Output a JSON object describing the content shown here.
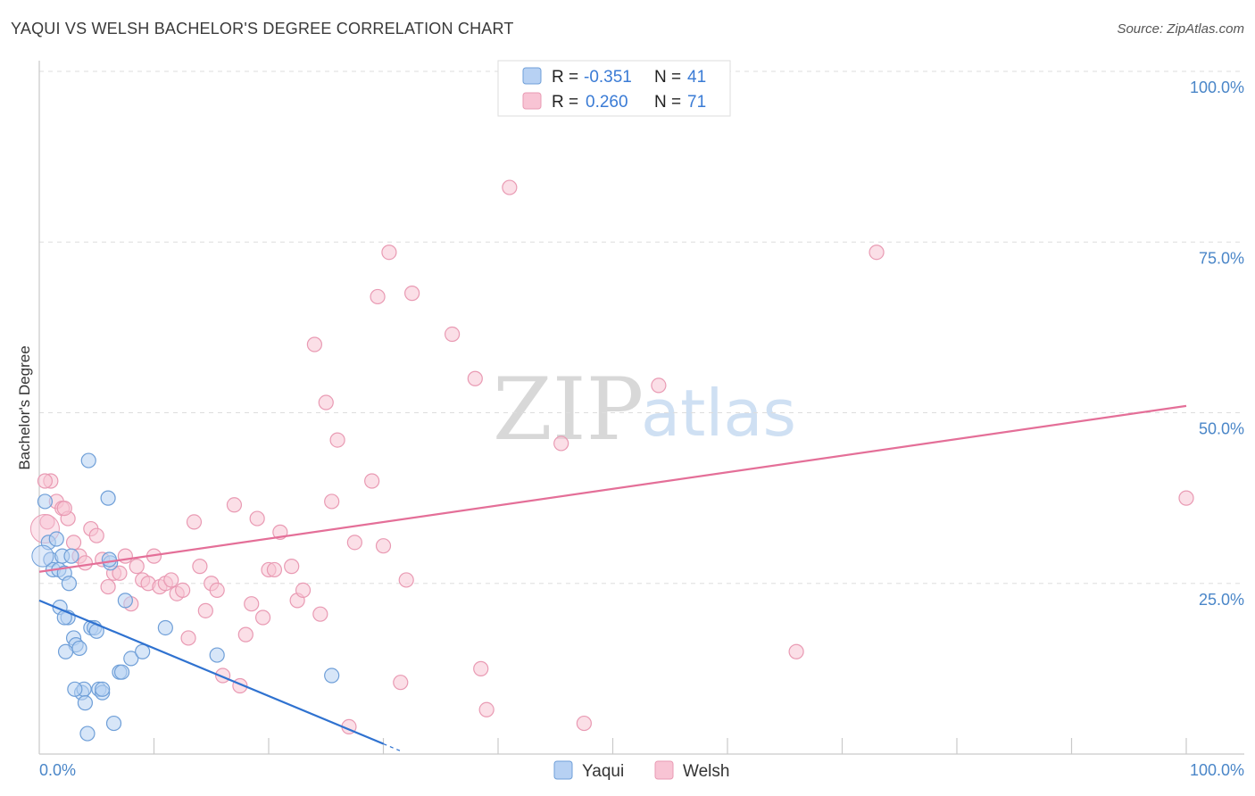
{
  "header": {
    "title": "YAQUI VS WELSH BACHELOR'S DEGREE CORRELATION CHART",
    "source": "Source: ZipAtlas.com"
  },
  "watermark": {
    "zip": "ZIP",
    "atlas": "atlas"
  },
  "legend_top": {
    "yaqui": {
      "r_label": "R =",
      "r_value": "-0.351",
      "n_label": "N =",
      "n_value": "41"
    },
    "welsh": {
      "r_label": "R =",
      "r_value": "0.260",
      "n_label": "N =",
      "n_value": "71"
    }
  },
  "legend_bottom": {
    "yaqui": "Yaqui",
    "welsh": "Welsh"
  },
  "colors": {
    "yaqui_fill": "#b7d1f3",
    "yaqui_stroke": "#6f9fd8",
    "yaqui_line": "#2f72d0",
    "welsh_fill": "#f8c4d4",
    "welsh_stroke": "#e99ab3",
    "welsh_line": "#e46f98",
    "grid": "#dddddd",
    "tick_text": "#4a86c8"
  },
  "chart_data": {
    "type": "scatter",
    "title": "YAQUI VS WELSH BACHELOR'S DEGREE CORRELATION CHART",
    "xlabel": "",
    "ylabel": "Bachelor's Degree",
    "xlim": [
      0,
      100
    ],
    "ylim": [
      0,
      100
    ],
    "x_tick_labels": [
      "0.0%",
      "100.0%"
    ],
    "y_tick_labels": [
      "25.0%",
      "50.0%",
      "75.0%",
      "100.0%"
    ],
    "y_ticks": [
      25,
      50,
      75,
      100
    ],
    "grid": true,
    "series": [
      {
        "name": "Yaqui",
        "r": -0.351,
        "n": 41,
        "trend": {
          "x0": 0,
          "y0": 22.5,
          "x1": 30,
          "y1": 1.5,
          "dashed_to_x": 31.5
        },
        "points": [
          [
            0.5,
            37.0
          ],
          [
            0.8,
            31.0
          ],
          [
            1.0,
            28.5
          ],
          [
            1.2,
            27.0
          ],
          [
            1.5,
            31.5
          ],
          [
            1.7,
            27.0
          ],
          [
            2.0,
            29.0
          ],
          [
            2.2,
            26.5
          ],
          [
            1.8,
            21.5
          ],
          [
            2.5,
            20.0
          ],
          [
            2.6,
            25.0
          ],
          [
            2.8,
            29.0
          ],
          [
            3.0,
            17.0
          ],
          [
            3.2,
            16.0
          ],
          [
            2.3,
            15.0
          ],
          [
            3.5,
            15.5
          ],
          [
            3.7,
            9.0
          ],
          [
            3.9,
            9.5
          ],
          [
            4.0,
            7.5
          ],
          [
            4.2,
            3.0
          ],
          [
            4.5,
            18.5
          ],
          [
            4.8,
            18.5
          ],
          [
            5.0,
            18.0
          ],
          [
            5.2,
            9.5
          ],
          [
            5.5,
            9.0
          ],
          [
            6.0,
            37.5
          ],
          [
            6.2,
            28.0
          ],
          [
            6.5,
            4.5
          ],
          [
            7.0,
            12.0
          ],
          [
            7.2,
            12.0
          ],
          [
            7.5,
            22.5
          ],
          [
            8.0,
            14.0
          ],
          [
            4.3,
            43.0
          ],
          [
            9.0,
            15.0
          ],
          [
            11.0,
            18.5
          ],
          [
            15.5,
            14.5
          ],
          [
            2.2,
            20.0
          ],
          [
            3.1,
            9.5
          ],
          [
            5.5,
            9.5
          ],
          [
            25.5,
            11.5
          ],
          [
            6.1,
            28.5
          ]
        ]
      },
      {
        "name": "Welsh",
        "r": 0.26,
        "n": 71,
        "trend": {
          "x0": 0,
          "y0": 26.7,
          "x1": 100,
          "y1": 51.0
        },
        "points": [
          [
            1.0,
            40.0
          ],
          [
            0.7,
            34.0
          ],
          [
            1.5,
            37.0
          ],
          [
            2.0,
            36.0
          ],
          [
            2.5,
            34.5
          ],
          [
            3.0,
            31.0
          ],
          [
            3.5,
            29.0
          ],
          [
            4.0,
            28.0
          ],
          [
            4.5,
            33.0
          ],
          [
            5.0,
            32.0
          ],
          [
            5.5,
            28.5
          ],
          [
            6.0,
            24.5
          ],
          [
            6.5,
            26.5
          ],
          [
            7.0,
            26.5
          ],
          [
            7.5,
            29.0
          ],
          [
            8.0,
            22.0
          ],
          [
            8.5,
            27.5
          ],
          [
            9.0,
            25.5
          ],
          [
            9.5,
            25.0
          ],
          [
            10.0,
            29.0
          ],
          [
            10.5,
            24.5
          ],
          [
            11.0,
            25.0
          ],
          [
            11.5,
            25.5
          ],
          [
            12.0,
            23.5
          ],
          [
            12.5,
            24.0
          ],
          [
            13.0,
            17.0
          ],
          [
            13.5,
            34.0
          ],
          [
            14.0,
            27.5
          ],
          [
            14.5,
            21.0
          ],
          [
            15.0,
            25.0
          ],
          [
            15.5,
            24.0
          ],
          [
            16.0,
            11.5
          ],
          [
            17.0,
            36.5
          ],
          [
            17.5,
            10.0
          ],
          [
            18.0,
            17.5
          ],
          [
            18.5,
            22.0
          ],
          [
            19.0,
            34.5
          ],
          [
            19.5,
            20.0
          ],
          [
            20.0,
            27.0
          ],
          [
            20.5,
            27.0
          ],
          [
            21.0,
            32.5
          ],
          [
            22.0,
            27.5
          ],
          [
            22.5,
            22.5
          ],
          [
            23.0,
            24.0
          ],
          [
            24.0,
            60.0
          ],
          [
            24.5,
            20.5
          ],
          [
            25.0,
            51.5
          ],
          [
            25.5,
            37.0
          ],
          [
            26.0,
            46.0
          ],
          [
            27.0,
            4.0
          ],
          [
            27.5,
            31.0
          ],
          [
            29.0,
            40.0
          ],
          [
            29.5,
            67.0
          ],
          [
            30.0,
            30.5
          ],
          [
            30.5,
            73.5
          ],
          [
            31.5,
            10.5
          ],
          [
            32.0,
            25.5
          ],
          [
            32.5,
            67.5
          ],
          [
            36.0,
            61.5
          ],
          [
            38.0,
            55.0
          ],
          [
            38.5,
            12.5
          ],
          [
            39.0,
            6.5
          ],
          [
            41.0,
            83.0
          ],
          [
            45.5,
            45.5
          ],
          [
            47.5,
            4.5
          ],
          [
            54.0,
            54.0
          ],
          [
            66.0,
            15.0
          ],
          [
            73.0,
            73.5
          ],
          [
            100.0,
            37.5
          ],
          [
            2.2,
            36.0
          ],
          [
            0.5,
            40.0
          ]
        ]
      }
    ]
  }
}
